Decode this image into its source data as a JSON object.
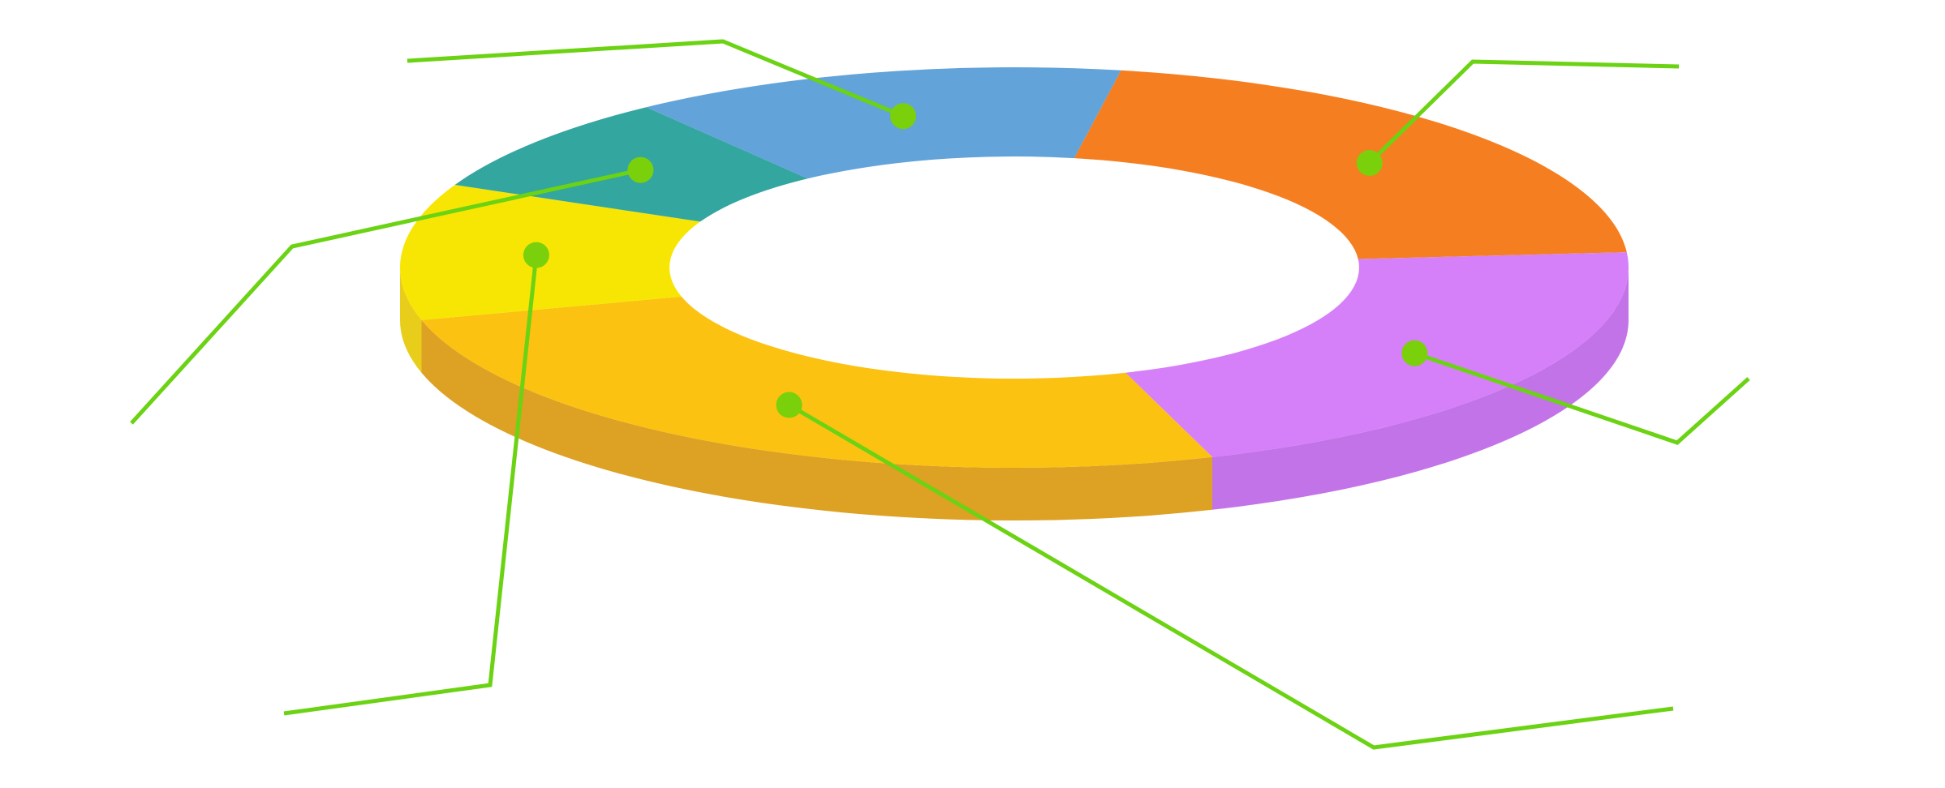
{
  "chart_data": {
    "type": "pie",
    "style": "3d-donut",
    "title": "",
    "legend": "none",
    "grid": false,
    "slices": [
      {
        "value": 21,
        "color": "#F57F20",
        "side_color": "#C9661A",
        "callout": true
      },
      {
        "value": 21,
        "color": "#D580F8",
        "side_color": "#C373E8",
        "callout": true
      },
      {
        "value": 26,
        "color": "#FCC211",
        "side_color": "#DDA123",
        "callout": true
      },
      {
        "value": 11,
        "color": "#F7E604",
        "side_color": "#E8CE1A",
        "callout": true
      },
      {
        "value": 8,
        "color": "#33A6A0",
        "side_color": "#2A8A85",
        "callout": true
      },
      {
        "value": 13,
        "color": "#62A3DA",
        "side_color": "#4F87B8",
        "callout": true
      }
    ],
    "callout_color": "#6BD313",
    "callout_dot_color": "#7AD00B"
  }
}
